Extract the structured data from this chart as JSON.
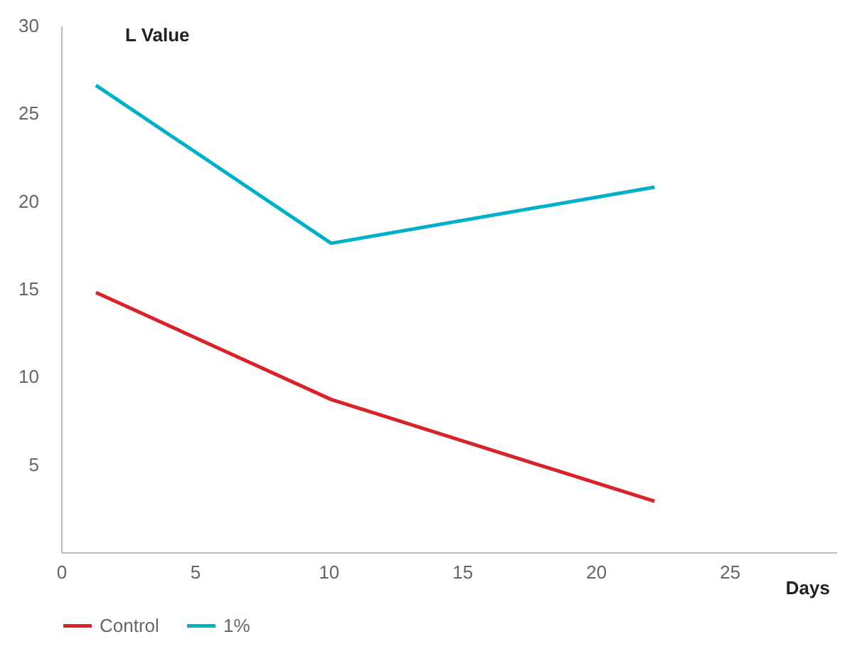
{
  "chart_data": {
    "type": "line",
    "title": "L Value",
    "xlabel": "Days",
    "xlim": [
      0,
      29
    ],
    "xticks": [
      0,
      5,
      10,
      15,
      20,
      25
    ],
    "ylim": [
      0,
      30
    ],
    "yticks": [
      5,
      10,
      15,
      20,
      25,
      30
    ],
    "grid": false,
    "legend": "bottom left",
    "x": [
      1.3,
      10.1,
      22.2
    ],
    "series": [
      {
        "name": "Control",
        "color": "#d7232a",
        "values": [
          14.8,
          8.7,
          2.9
        ]
      },
      {
        "name": "1%",
        "color": "#00b0c8",
        "values": [
          26.6,
          17.6,
          20.8
        ]
      }
    ]
  }
}
